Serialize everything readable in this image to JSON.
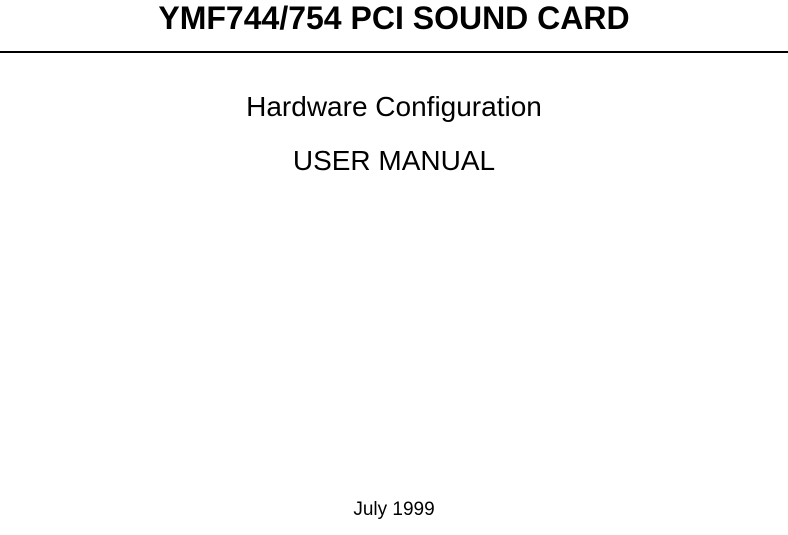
{
  "document": {
    "title": "YMF744/754 PCI SOUND CARD",
    "subtitle_line1": "Hardware Configuration",
    "subtitle_line2": "USER MANUAL",
    "date": "July 1999",
    "colors": {
      "text": "#000000",
      "background": "#ffffff",
      "divider": "#000000"
    },
    "typography": {
      "title_fontsize": 32,
      "title_fontweight": "bold",
      "subtitle_fontsize": 28,
      "subtitle_fontweight": "normal",
      "date_fontsize": 19,
      "font_family": "Arial, Helvetica, sans-serif"
    }
  }
}
